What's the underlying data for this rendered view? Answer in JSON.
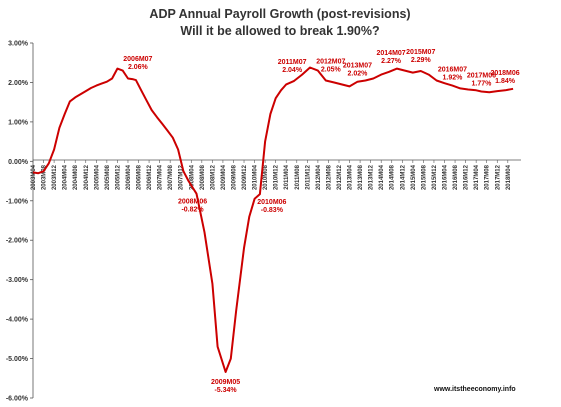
{
  "chart_data": {
    "type": "line",
    "title": "ADP Annual Payroll Growth (post-revisions)",
    "subtitle": "Will it be allowed to break 1.90%?",
    "source": "www.itstheeconomy.info",
    "line_color": "#cc0000",
    "annotation_color": "#cc0000",
    "grid": false,
    "ylim": [
      -6.0,
      3.0
    ],
    "y_ticks": [
      "3.00%",
      "2.00%",
      "1.00%",
      "0.00%",
      "-1.00%",
      "-2.00%",
      "-3.00%",
      "-4.00%",
      "-5.00%",
      "-6.00%"
    ],
    "y_tick_values": [
      3,
      2,
      1,
      0,
      -1,
      -2,
      -3,
      -4,
      -5,
      -6
    ],
    "x_ticks": [
      "2003M04",
      "2003M08",
      "2003M12",
      "2004M04",
      "2004M08",
      "2004M12",
      "2005M04",
      "2005M08",
      "2005M12",
      "2006M04",
      "2006M08",
      "2006M12",
      "2007M04",
      "2007M08",
      "2007M12",
      "2008M04",
      "2008M08",
      "2008M12",
      "2009M04",
      "2009M08",
      "2009M12",
      "2010M04",
      "2010M08",
      "2010M12",
      "2011M04",
      "2011M08",
      "2011M12",
      "2012M04",
      "2012M08",
      "2012M12",
      "2013M04",
      "2013M08",
      "2013M12",
      "2014M04",
      "2014M08",
      "2014M12",
      "2015M04",
      "2015M08",
      "2015M12",
      "2016M04",
      "2016M08",
      "2016M12",
      "2017M04",
      "2017M08",
      "2017M12",
      "2018M04"
    ],
    "series": [
      {
        "x": [
          "2003M04",
          "2003M06",
          "2003M08",
          "2003M10",
          "2003M12",
          "2004M02",
          "2004M04",
          "2004M06",
          "2004M08",
          "2004M10",
          "2004M12",
          "2005M02",
          "2005M04",
          "2005M06",
          "2005M08",
          "2005M10",
          "2005M12",
          "2006M02",
          "2006M04",
          "2006M06",
          "2006M07",
          "2006M09",
          "2006M11",
          "2007M01",
          "2007M03",
          "2007M05",
          "2007M07",
          "2007M09",
          "2007M11",
          "2008M01",
          "2008M03",
          "2008M06",
          "2008M09",
          "2008M12",
          "2009M02",
          "2009M05",
          "2009M07",
          "2009M09",
          "2009M12",
          "2010M02",
          "2010M04",
          "2010M06",
          "2010M08",
          "2010M10",
          "2010M12",
          "2011M02",
          "2011M04",
          "2011M07",
          "2011M10",
          "2012M01",
          "2012M04",
          "2012M07",
          "2012M10",
          "2013M01",
          "2013M04",
          "2013M07",
          "2013M10",
          "2014M01",
          "2014M04",
          "2014M07",
          "2014M10",
          "2015M01",
          "2015M04",
          "2015M07",
          "2015M10",
          "2016M01",
          "2016M04",
          "2016M07",
          "2016M10",
          "2017M01",
          "2017M04",
          "2017M06",
          "2017M09",
          "2017M12",
          "2018M03",
          "2018M06"
        ],
        "values": [
          -0.28,
          -0.3,
          -0.25,
          -0.05,
          0.3,
          0.85,
          1.2,
          1.52,
          1.62,
          1.7,
          1.78,
          1.86,
          1.92,
          1.97,
          2.02,
          2.1,
          2.35,
          2.3,
          2.1,
          2.08,
          2.06,
          1.8,
          1.55,
          1.3,
          1.12,
          0.95,
          0.78,
          0.6,
          0.3,
          -0.25,
          -0.5,
          -0.82,
          -1.8,
          -3.1,
          -4.7,
          -5.34,
          -5.0,
          -3.8,
          -2.2,
          -1.4,
          -0.95,
          -0.83,
          0.5,
          1.2,
          1.6,
          1.8,
          1.95,
          2.04,
          2.2,
          2.38,
          2.3,
          2.05,
          2.0,
          1.95,
          1.9,
          2.02,
          2.05,
          2.1,
          2.2,
          2.27,
          2.35,
          2.3,
          2.25,
          2.29,
          2.2,
          2.05,
          1.98,
          1.92,
          1.85,
          1.82,
          1.8,
          1.77,
          1.75,
          1.78,
          1.8,
          1.84
        ]
      }
    ],
    "annotations": [
      {
        "name": "2006M07",
        "value": "2.06%"
      },
      {
        "name": "2008M06",
        "value": "-0.82%"
      },
      {
        "name": "2009M05",
        "value": "-5.34%"
      },
      {
        "name": "2010M06",
        "value": "-0.83%"
      },
      {
        "name": "2011M07",
        "value": "2.04%"
      },
      {
        "name": "2012M07",
        "value": "2.05%"
      },
      {
        "name": "2013M07",
        "value": "2.02%"
      },
      {
        "name": "2014M07",
        "value": "2.27%"
      },
      {
        "name": "2015M07",
        "value": "2.29%"
      },
      {
        "name": "2016M07",
        "value": "1.92%"
      },
      {
        "name": "2017M06",
        "value": "1.77%"
      },
      {
        "name": "2018M06",
        "value": "1.84%"
      }
    ]
  }
}
